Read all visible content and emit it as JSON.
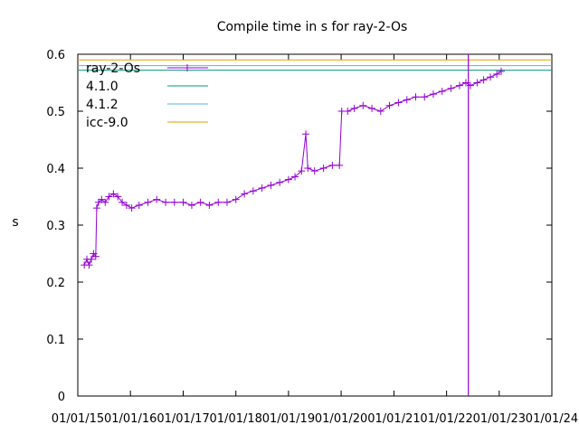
{
  "chart_data": {
    "type": "scatter",
    "title": "Compile time in s for ray-2-Os",
    "xlabel": "",
    "ylabel": "s",
    "x_type": "date",
    "xlim": [
      "2015-01-01",
      "2024-01-01"
    ],
    "ylim": [
      0,
      0.6
    ],
    "grid": false,
    "legend_position": "top-left",
    "x_ticks": [
      "01/01/15",
      "01/01/16",
      "01/01/17",
      "01/01/18",
      "01/01/19",
      "01/01/20",
      "01/01/21",
      "01/01/22",
      "01/01/23",
      "01/01/24"
    ],
    "y_ticks": [
      "0",
      "0.1",
      "0.2",
      "0.3",
      "0.4",
      "0.5",
      "0.6"
    ],
    "y_tick_values": [
      0,
      0.1,
      0.2,
      0.3,
      0.4,
      0.5,
      0.6
    ],
    "series": [
      {
        "name": "ray-2-Os",
        "color": "#9400d3",
        "marker": "plus",
        "points": [
          [
            "2015-02-15",
            0.23
          ],
          [
            "2015-03-05",
            0.24
          ],
          [
            "2015-03-20",
            0.23
          ],
          [
            "2015-04-05",
            0.24
          ],
          [
            "2015-04-20",
            0.25
          ],
          [
            "2015-05-05",
            0.245
          ],
          [
            "2015-05-12",
            0.33
          ],
          [
            "2015-05-25",
            0.34
          ],
          [
            "2015-06-15",
            0.345
          ],
          [
            "2015-07-10",
            0.34
          ],
          [
            "2015-08-05",
            0.35
          ],
          [
            "2015-09-05",
            0.355
          ],
          [
            "2015-10-05",
            0.35
          ],
          [
            "2015-11-05",
            0.34
          ],
          [
            "2015-12-05",
            0.335
          ],
          [
            "2016-01-10",
            0.33
          ],
          [
            "2016-03-01",
            0.335
          ],
          [
            "2016-05-01",
            0.34
          ],
          [
            "2016-07-01",
            0.345
          ],
          [
            "2016-09-01",
            0.34
          ],
          [
            "2016-11-01",
            0.34
          ],
          [
            "2017-01-01",
            0.34
          ],
          [
            "2017-03-01",
            0.335
          ],
          [
            "2017-05-01",
            0.34
          ],
          [
            "2017-07-01",
            0.335
          ],
          [
            "2017-09-01",
            0.34
          ],
          [
            "2017-11-01",
            0.34
          ],
          [
            "2018-01-01",
            0.345
          ],
          [
            "2018-03-01",
            0.355
          ],
          [
            "2018-05-01",
            0.36
          ],
          [
            "2018-07-01",
            0.365
          ],
          [
            "2018-09-01",
            0.37
          ],
          [
            "2018-11-01",
            0.375
          ],
          [
            "2019-01-01",
            0.38
          ],
          [
            "2019-02-15",
            0.385
          ],
          [
            "2019-04-01",
            0.395
          ],
          [
            "2019-05-01",
            0.46
          ],
          [
            "2019-05-15",
            0.4
          ],
          [
            "2019-07-01",
            0.395
          ],
          [
            "2019-09-01",
            0.4
          ],
          [
            "2019-11-01",
            0.405
          ],
          [
            "2019-12-20",
            0.405
          ],
          [
            "2020-01-05",
            0.5
          ],
          [
            "2020-02-15",
            0.5
          ],
          [
            "2020-04-01",
            0.505
          ],
          [
            "2020-06-01",
            0.51
          ],
          [
            "2020-08-01",
            0.505
          ],
          [
            "2020-10-01",
            0.5
          ],
          [
            "2020-12-01",
            0.51
          ],
          [
            "2021-02-01",
            0.515
          ],
          [
            "2021-04-01",
            0.52
          ],
          [
            "2021-06-01",
            0.525
          ],
          [
            "2021-08-01",
            0.525
          ],
          [
            "2021-10-01",
            0.53
          ],
          [
            "2021-12-01",
            0.535
          ],
          [
            "2022-02-01",
            0.54
          ],
          [
            "2022-04-01",
            0.545
          ],
          [
            "2022-05-15",
            0.55
          ],
          [
            "2022-06-15",
            0.545
          ],
          [
            "2022-08-01",
            0.55
          ],
          [
            "2022-09-15",
            0.555
          ],
          [
            "2022-11-01",
            0.56
          ],
          [
            "2022-12-15",
            0.565
          ],
          [
            "2023-01-15",
            0.57
          ]
        ]
      },
      {
        "name": "4.1.0",
        "color": "#009e73",
        "y": 0.572
      },
      {
        "name": "4.1.2",
        "color": "#56b4e9",
        "y": 0.58
      },
      {
        "name": "icc-9.0",
        "color": "#e69f00",
        "y": 0.59
      }
    ],
    "annotations": [
      {
        "type": "spike",
        "x": "2022-06-01",
        "y_from": 0.6,
        "y_to": 0
      }
    ]
  }
}
